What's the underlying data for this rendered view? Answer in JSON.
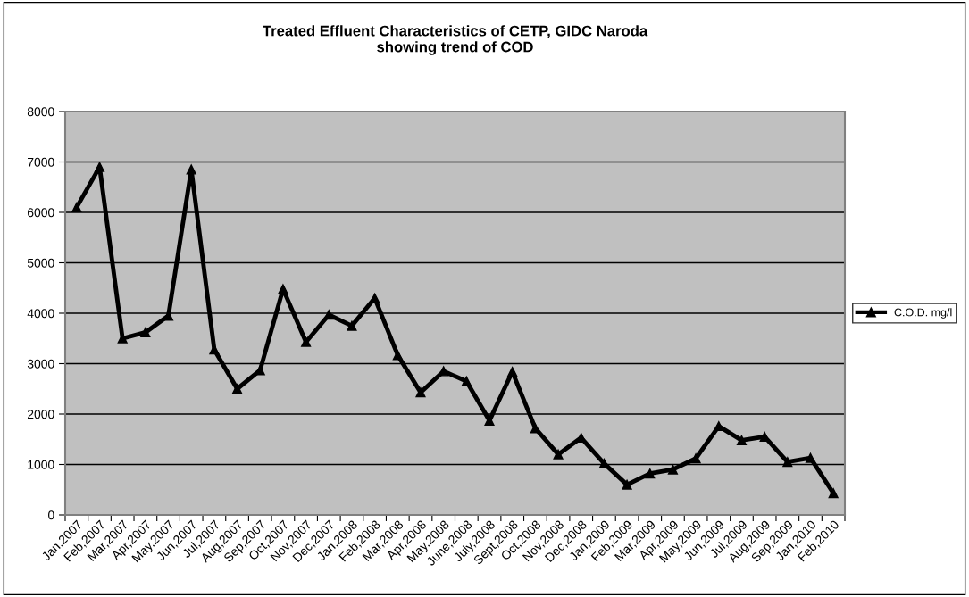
{
  "chart_data": {
    "type": "line",
    "title": "Treated Effluent Characteristics of CETP, GIDC Naroda\nshowing trend of COD",
    "categories": [
      "Jan,2007",
      "Feb,2007",
      "Mar,2007",
      "Apr,2007",
      "May,2007",
      "Jun,2007",
      "Jul,2007",
      "Aug,2007",
      "Sep,2007",
      "Oct,2007",
      "Nov,2007",
      "Dec,2007",
      "Jan,2008",
      "Feb,2008",
      "Mar,2008",
      "Apr,2008",
      "May,2008",
      "June,2008",
      "July,2008",
      "Sept,2008",
      "Oct,2008",
      "Nov,2008",
      "Dec,2008",
      "Jan,2009",
      "Feb,2009",
      "Mar,2009",
      "Apr,2009",
      "May,2009",
      "Jun,2009",
      "Jul,2009",
      "Aug,2009",
      "Sep,2009",
      "Jan,2010",
      "Feb,2010"
    ],
    "series": [
      {
        "name": "C.O.D. mg/l",
        "color": "#000000",
        "values": [
          6100,
          6900,
          3500,
          3620,
          3950,
          6850,
          3280,
          2500,
          2870,
          4480,
          3430,
          3970,
          3750,
          4300,
          3170,
          2430,
          2850,
          2650,
          1870,
          2840,
          1720,
          1200,
          1530,
          1020,
          600,
          820,
          900,
          1120,
          1760,
          1480,
          1550,
          1050,
          1130,
          430
        ]
      }
    ],
    "ylim": [
      0,
      8000
    ],
    "yticks": [
      0,
      1000,
      2000,
      3000,
      4000,
      5000,
      6000,
      7000,
      8000
    ],
    "grid": "y",
    "legend": "right",
    "marker": "triangle",
    "line_style": "solid"
  }
}
